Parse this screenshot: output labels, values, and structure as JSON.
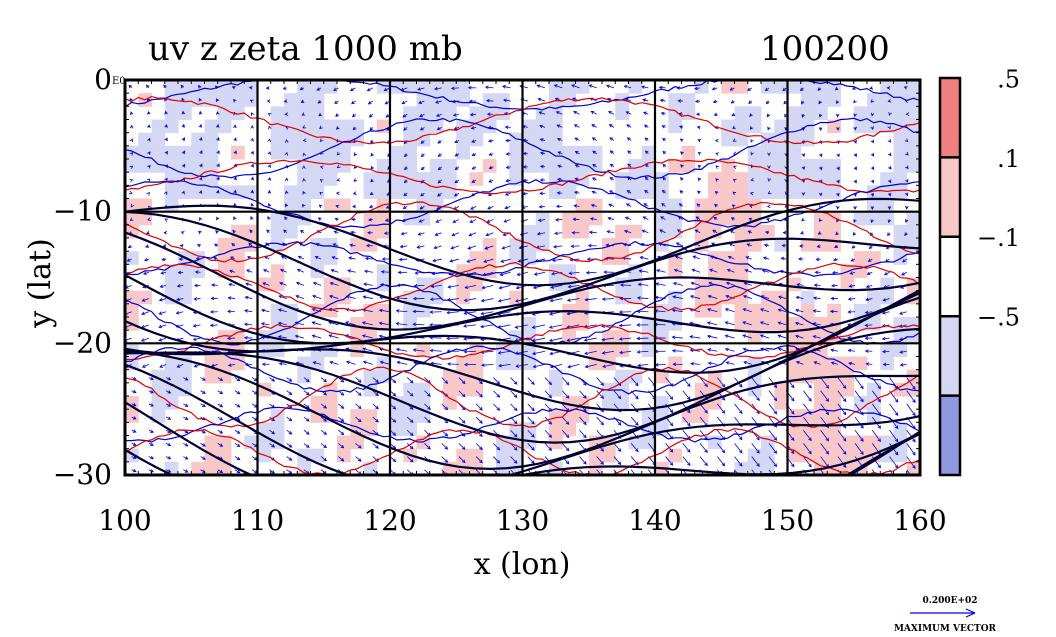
{
  "header": {
    "title": "uv z zeta 1000 mb",
    "timestamp": "100200"
  },
  "chart_data": {
    "type": "contour",
    "xlabel": "x (lon)",
    "ylabel": "y (lat)",
    "xlim": [
      100,
      160
    ],
    "ylim": [
      -30,
      0
    ],
    "xticks": [
      100,
      110,
      120,
      130,
      140,
      150,
      160
    ],
    "yticks": [
      0,
      -10,
      -20,
      -30
    ],
    "xtick_labels": [
      "100",
      "110",
      "120",
      "130",
      "140",
      "150",
      "160"
    ],
    "ytick_labels": [
      "0",
      "−10",
      "−20",
      "−30"
    ],
    "corner_label": "E0",
    "grid": true,
    "colorbar": {
      "levels": [
        0.5,
        0.1,
        -0.1,
        -0.5
      ],
      "labels": [
        ".5",
        ".1",
        "−.1",
        "−.5"
      ],
      "colors": [
        "#f08080",
        "#f8c8c8",
        "#ffffff",
        "#d4d8f4",
        "#9098e0"
      ]
    },
    "colors": {
      "positive_contour": "#e00000",
      "negative_contour": "#0000cc",
      "height_contour": "#000033",
      "vector": "#0000e0",
      "positive_fill": "#f8c8c8",
      "negative_fill": "#d4d8f4"
    },
    "vector_legend": {
      "value": "0.200E+02",
      "label": "MAXIMUM VECTOR"
    }
  }
}
